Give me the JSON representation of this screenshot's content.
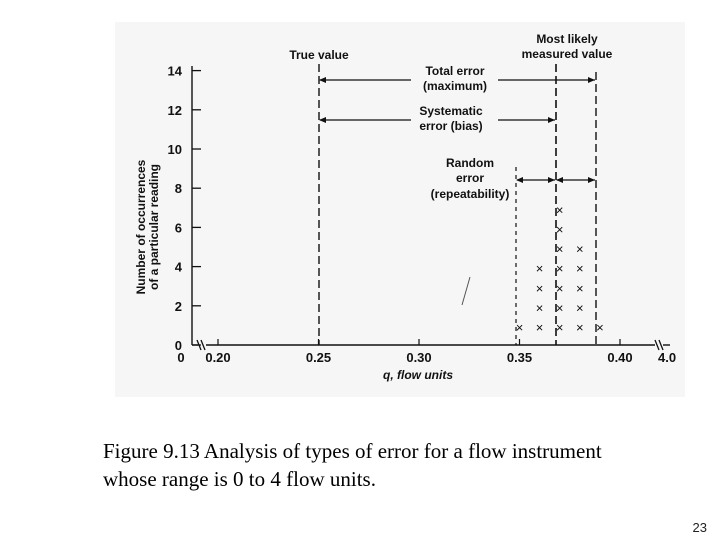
{
  "figure": {
    "y_axis_label_line1": "Number of occurrences",
    "y_axis_label_line2": "of a particular reading",
    "x_axis_label": "q, flow units",
    "y_ticks": [
      "0",
      "2",
      "4",
      "6",
      "8",
      "10",
      "12",
      "14"
    ],
    "x_ticks": [
      "0",
      "0.20",
      "0.25",
      "0.30",
      "0.35",
      "0.40",
      "4.0"
    ],
    "annotations": {
      "true_value": "True value",
      "most_likely_line1": "Most likely",
      "most_likely_line2": "measured value",
      "total_error_line1": "Total error",
      "total_error_line2": "(maximum)",
      "systematic_line1": "Systematic",
      "systematic_line2": "error (bias)",
      "random_line1": "Random",
      "random_line2": "error",
      "random_line3": "(repeatability)"
    },
    "marker_symbol": "×",
    "readings": [
      {
        "q": 0.35,
        "count": 1
      },
      {
        "q": 0.36,
        "count": 4
      },
      {
        "q": 0.37,
        "count": 7
      },
      {
        "q": 0.38,
        "count": 5
      },
      {
        "q": 0.39,
        "count": 1
      }
    ],
    "true_value_q": 0.25,
    "most_likely_q": 0.37,
    "max_reading_q": 0.39,
    "min_reading_q": 0.35
  },
  "caption": {
    "line1": "Figure 9.13 Analysis of types of error for a flow instrument",
    "line2": "whose range is 0 to 4 flow units."
  },
  "slide_number": "23"
}
